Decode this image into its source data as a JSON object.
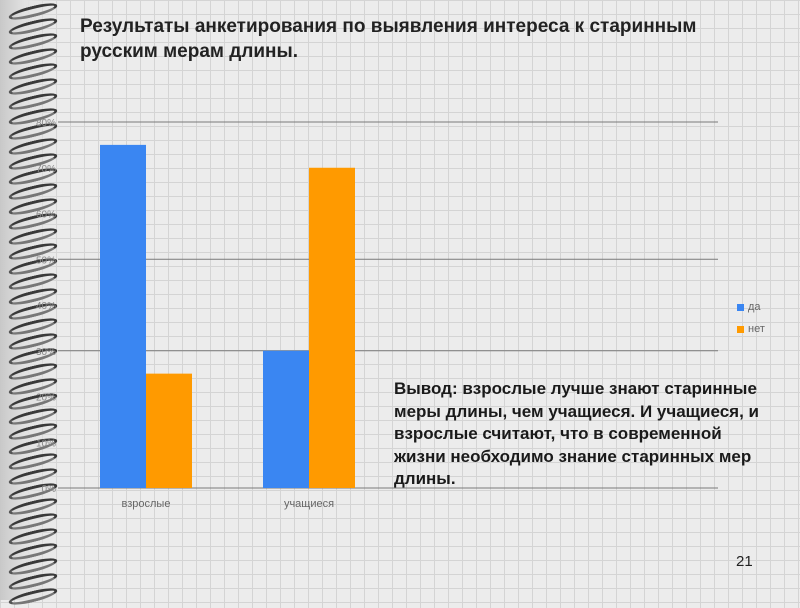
{
  "slide": {
    "title": "Результаты анкетирования по выявления интереса к старинным русским мерам длины.",
    "conclusion": "Вывод: взрослые лучше знают старинные меры длины, чем учащиеся. И учащиеся, и взрослые считают, что в современной жизни необходимо знание старинных мер длины.",
    "page_number": "21"
  },
  "chart_data": {
    "type": "bar",
    "categories": [
      "взрослые",
      "учащиеся"
    ],
    "series": [
      {
        "name": "да",
        "values": [
          75,
          30
        ],
        "color": "#3a86f2"
      },
      {
        "name": "нет",
        "values": [
          25,
          70
        ],
        "color": "#ff9a00"
      }
    ],
    "y_ticks": [
      "0%",
      "10%",
      "20%",
      "30%",
      "40%",
      "50%",
      "60%",
      "70%",
      "80%"
    ],
    "ylim": [
      0,
      80
    ],
    "legend_position": "right",
    "grid_major": [
      0,
      30,
      50,
      80
    ]
  }
}
